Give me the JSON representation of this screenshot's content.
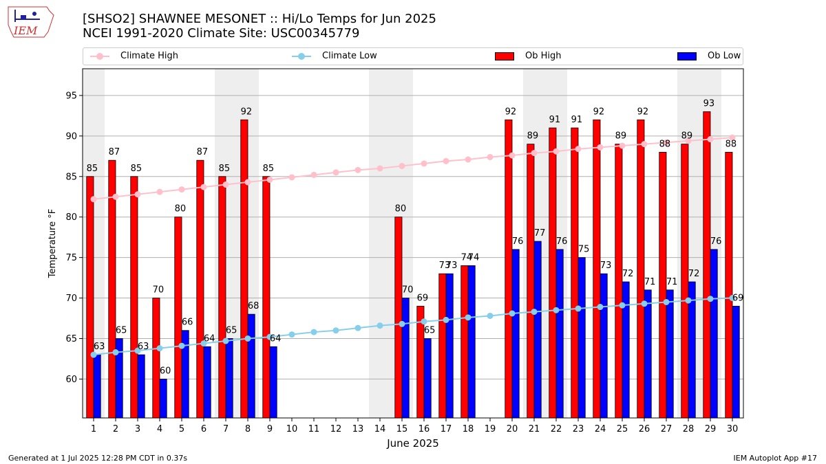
{
  "logo_text": "IEM",
  "title": "[SHSO2] SHAWNEE MESONET :: Hi/Lo Temps for Jun 2025",
  "subtitle": "NCEI 1991-2020 Climate Site: USC00345779",
  "legend": {
    "climate_high": "Climate High",
    "climate_low": "Climate Low",
    "ob_high": "Ob High",
    "ob_low": "Ob Low"
  },
  "colors": {
    "ob_high": "#ff0000",
    "ob_low": "#0000ff",
    "climate_high": "#ffc0cb",
    "climate_low": "#87ceeb",
    "weekend_shade": "#eeeeee",
    "grid": "#b0b0b0"
  },
  "footer": {
    "left": "Generated at 1 Jul 2025 12:28 PM CDT in 0.37s",
    "right": "IEM Autoplot App #17"
  },
  "chart_data": {
    "type": "bar",
    "xlabel": "June 2025",
    "ylabel": "Temperature °F",
    "ylim": [
      55.2,
      98.3
    ],
    "yticks": [
      60,
      65,
      70,
      75,
      80,
      85,
      90,
      95
    ],
    "grid": "horizontal",
    "legend_position": "top",
    "categories": [
      "1",
      "2",
      "3",
      "4",
      "5",
      "6",
      "7",
      "8",
      "9",
      "10",
      "11",
      "12",
      "13",
      "14",
      "15",
      "16",
      "17",
      "18",
      "19",
      "20",
      "21",
      "22",
      "23",
      "24",
      "25",
      "26",
      "27",
      "28",
      "29",
      "30"
    ],
    "shaded_days": [
      1,
      7,
      8,
      14,
      15,
      21,
      22,
      28,
      29
    ],
    "series": [
      {
        "name": "Ob High",
        "kind": "bar",
        "values": [
          85,
          87,
          85,
          70,
          80,
          87,
          85,
          92,
          85,
          null,
          null,
          null,
          null,
          null,
          80,
          69,
          73,
          74,
          null,
          92,
          89,
          91,
          91,
          92,
          89,
          92,
          88,
          89,
          93,
          88
        ]
      },
      {
        "name": "Ob Low",
        "kind": "bar",
        "values": [
          63,
          65,
          63,
          60,
          66,
          64,
          65,
          68,
          64,
          null,
          null,
          null,
          null,
          null,
          70,
          65,
          73,
          74,
          null,
          76,
          77,
          76,
          75,
          73,
          72,
          71,
          71,
          72,
          76,
          69
        ]
      },
      {
        "name": "Climate High",
        "kind": "line",
        "values": [
          82.2,
          82.5,
          82.8,
          83.1,
          83.4,
          83.7,
          84.0,
          84.3,
          84.6,
          84.9,
          85.2,
          85.5,
          85.8,
          86.0,
          86.3,
          86.6,
          86.9,
          87.1,
          87.4,
          87.6,
          87.9,
          88.1,
          88.4,
          88.6,
          88.8,
          89.0,
          89.2,
          89.4,
          89.6,
          89.8
        ]
      },
      {
        "name": "Climate Low",
        "kind": "line",
        "values": [
          63.0,
          63.3,
          63.5,
          63.8,
          64.1,
          64.4,
          64.7,
          65.0,
          65.2,
          65.5,
          65.8,
          66.0,
          66.3,
          66.6,
          66.8,
          67.1,
          67.3,
          67.6,
          67.8,
          68.1,
          68.3,
          68.5,
          68.7,
          68.9,
          69.1,
          69.3,
          69.5,
          69.7,
          69.9,
          70.0
        ]
      }
    ]
  }
}
